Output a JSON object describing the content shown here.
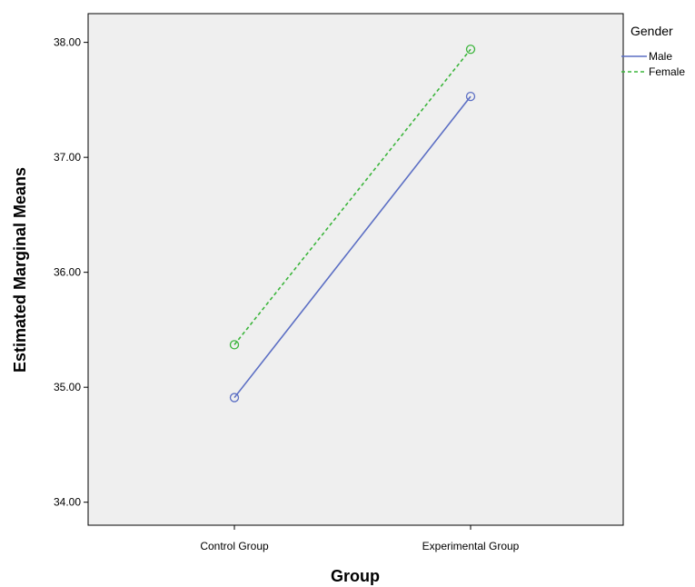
{
  "chart_data": {
    "type": "line",
    "xlabel": "Group",
    "ylabel": "Estimated Marginal Means",
    "categories": [
      "Control Group",
      "Experimental Group"
    ],
    "ylim": [
      33.8,
      38.25
    ],
    "yticks": [
      "34.00",
      "35.00",
      "36.00",
      "37.00",
      "38.00"
    ],
    "ytick_values": [
      34,
      35,
      36,
      37,
      38
    ],
    "grid": false,
    "legend": {
      "title": "Gender",
      "placement": "right"
    },
    "series": [
      {
        "name": "Male",
        "values": [
          34.91,
          37.53
        ],
        "color": "#5c6fc4",
        "dash": "solid"
      },
      {
        "name": "Female",
        "values": [
          35.37,
          37.94
        ],
        "color": "#3cb53c",
        "dash": "dashed"
      }
    ],
    "plot_background": "#efefef"
  }
}
